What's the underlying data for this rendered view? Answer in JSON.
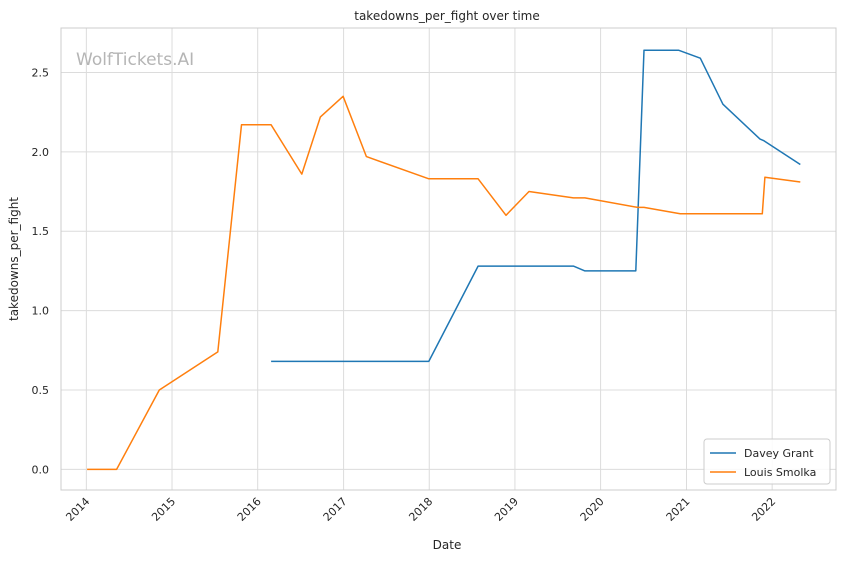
{
  "watermark": "WolfTickets.AI",
  "chart_data": {
    "type": "line",
    "title": "takedowns_per_fight over time",
    "xlabel": "Date",
    "ylabel": "takedowns_per_fight",
    "xlim": [
      "2013-09-15",
      "2022-09-30"
    ],
    "ylim": [
      -0.13,
      2.78
    ],
    "x_ticks": [
      "2014",
      "2015",
      "2016",
      "2017",
      "2018",
      "2019",
      "2020",
      "2021",
      "2022"
    ],
    "y_ticks": [
      "0.0",
      "0.5",
      "1.0",
      "1.5",
      "2.0",
      "2.5"
    ],
    "grid": true,
    "legend_position": "lower-right",
    "series": [
      {
        "name": "Davey Grant",
        "color": "#1f77b4",
        "points": [
          [
            "2016-02-27",
            0.68
          ],
          [
            "2017-03-01",
            0.68
          ],
          [
            "2017-12-30",
            0.68
          ],
          [
            "2018-07-28",
            1.28
          ],
          [
            "2019-01-01",
            1.28
          ],
          [
            "2019-09-07",
            1.28
          ],
          [
            "2019-10-26",
            1.25
          ],
          [
            "2020-05-30",
            1.25
          ],
          [
            "2020-07-04",
            2.64
          ],
          [
            "2020-11-28",
            2.64
          ],
          [
            "2021-03-01",
            2.59
          ],
          [
            "2021-06-05",
            2.3
          ],
          [
            "2021-11-10",
            2.08
          ],
          [
            "2021-11-27",
            2.07
          ],
          [
            "2022-05-01",
            1.92
          ]
        ]
      },
      {
        "name": "Louis Smolka",
        "color": "#ff7f0e",
        "points": [
          [
            "2014-01-04",
            0.0
          ],
          [
            "2014-05-10",
            0.0
          ],
          [
            "2014-11-08",
            0.5
          ],
          [
            "2015-07-15",
            0.74
          ],
          [
            "2015-10-24",
            2.17
          ],
          [
            "2016-02-27",
            2.17
          ],
          [
            "2016-07-07",
            1.86
          ],
          [
            "2016-09-24",
            2.22
          ],
          [
            "2016-12-30",
            2.35
          ],
          [
            "2017-04-08",
            1.97
          ],
          [
            "2017-12-30",
            1.83
          ],
          [
            "2018-07-28",
            1.83
          ],
          [
            "2018-11-24",
            1.6
          ],
          [
            "2019-03-02",
            1.75
          ],
          [
            "2019-09-07",
            1.71
          ],
          [
            "2019-10-26",
            1.71
          ],
          [
            "2020-06-07",
            1.65
          ],
          [
            "2020-07-04",
            1.65
          ],
          [
            "2020-12-05",
            1.61
          ],
          [
            "2021-11-20",
            1.61
          ],
          [
            "2021-12-01",
            1.84
          ],
          [
            "2022-05-01",
            1.81
          ]
        ]
      }
    ]
  }
}
